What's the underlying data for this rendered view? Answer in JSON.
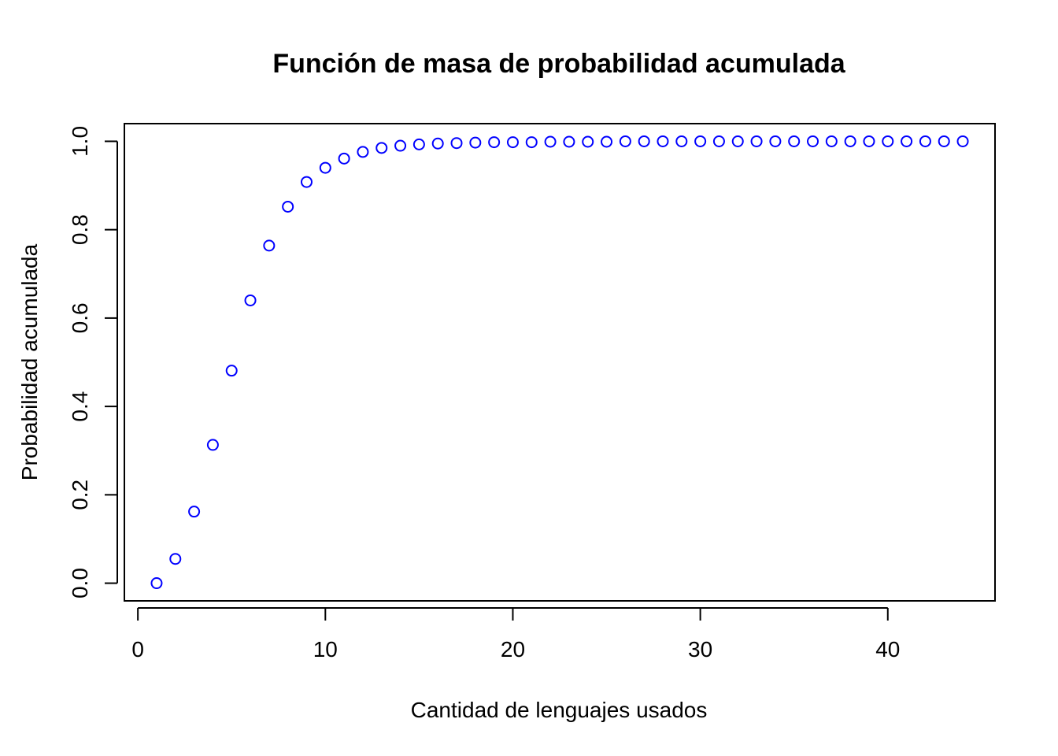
{
  "chart_data": {
    "type": "scatter",
    "title": "Función de masa de probabilidad acumulada",
    "xlabel": "Cantidad de lenguajes usados",
    "ylabel": "Probabilidad acumulada",
    "xlim": [
      -0.72,
      45.72
    ],
    "ylim": [
      -0.04,
      1.04
    ],
    "xticks": [
      0,
      10,
      20,
      30,
      40
    ],
    "xtick_labels": [
      "0",
      "10",
      "20",
      "30",
      "40"
    ],
    "yticks": [
      0.0,
      0.2,
      0.4,
      0.6,
      0.8,
      1.0
    ],
    "ytick_labels": [
      "0.0",
      "0.2",
      "0.4",
      "0.6",
      "0.8",
      "1.0"
    ],
    "grid": false,
    "marker": "open-circle",
    "point_color": "#0000FF",
    "x": [
      1,
      2,
      3,
      4,
      5,
      6,
      7,
      8,
      9,
      10,
      11,
      12,
      13,
      14,
      15,
      16,
      17,
      18,
      19,
      20,
      21,
      22,
      23,
      24,
      25,
      26,
      27,
      28,
      29,
      30,
      31,
      32,
      33,
      34,
      35,
      36,
      37,
      38,
      39,
      40,
      41,
      42,
      43,
      44
    ],
    "y": [
      0.0,
      0.055,
      0.162,
      0.313,
      0.481,
      0.64,
      0.764,
      0.852,
      0.908,
      0.94,
      0.961,
      0.976,
      0.985,
      0.99,
      0.993,
      0.995,
      0.996,
      0.997,
      0.998,
      0.998,
      0.998,
      0.999,
      0.999,
      0.999,
      0.999,
      1.0,
      1.0,
      1.0,
      1.0,
      1.0,
      1.0,
      1.0,
      1.0,
      1.0,
      1.0,
      1.0,
      1.0,
      1.0,
      1.0,
      1.0,
      1.0,
      1.0,
      1.0,
      1.0
    ]
  }
}
